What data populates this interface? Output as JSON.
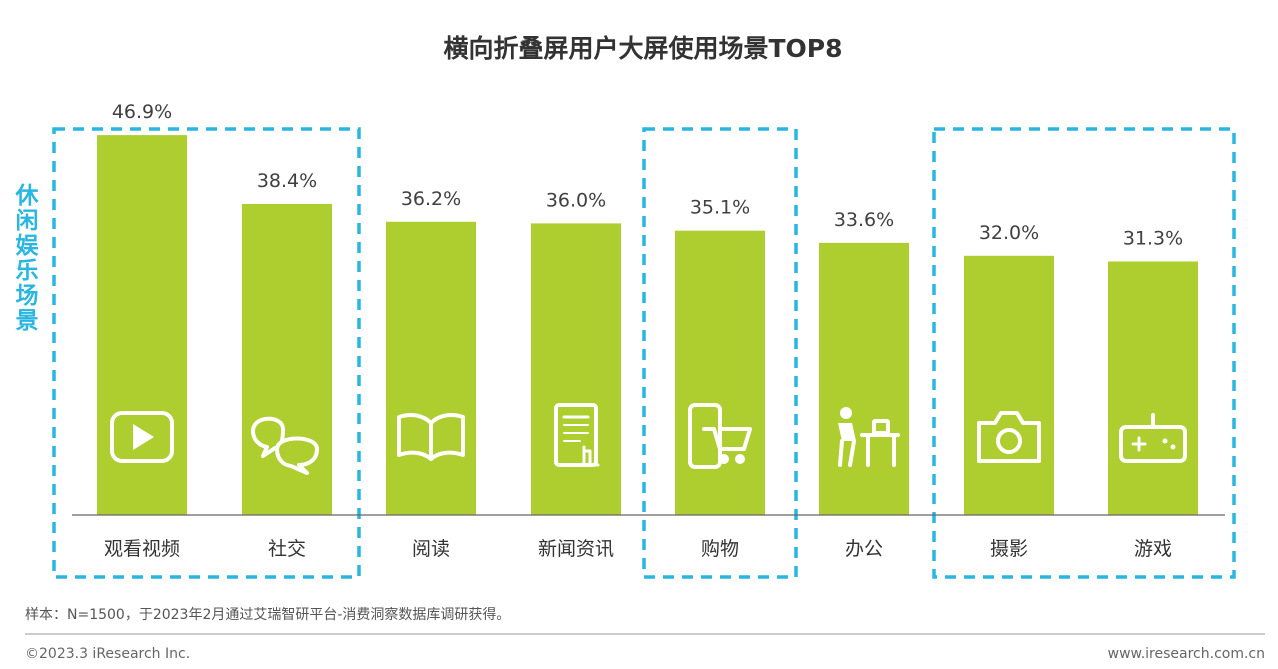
{
  "colors": {
    "bar": "#aecd2f",
    "highlight_box": "#29b6e0",
    "side_label": "#29b6e0",
    "icon": "#ffffff",
    "axis": "#666666"
  },
  "chart_data": {
    "type": "bar",
    "title": "横向折叠屏用户大屏使用场景TOP8",
    "categories": [
      "观看视频",
      "社交",
      "阅读",
      "新闻资讯",
      "购物",
      "办公",
      "摄影",
      "游戏"
    ],
    "values": [
      46.9,
      38.4,
      36.2,
      36.0,
      35.1,
      33.6,
      32.0,
      31.3
    ],
    "value_labels": [
      "46.9%",
      "38.4%",
      "36.2%",
      "36.0%",
      "35.1%",
      "33.6%",
      "32.0%",
      "31.3%"
    ],
    "icons": [
      "video-play-icon",
      "chat-bubbles-icon",
      "open-book-icon",
      "news-tablet-icon",
      "phone-cart-icon",
      "person-desk-icon",
      "camera-icon",
      "gamepad-icon"
    ],
    "ylim": [
      0,
      50
    ],
    "grid": false,
    "side_label": "休闲娱乐场景",
    "highlight_groups": [
      [
        "观看视频",
        "社交"
      ],
      [
        "购物"
      ],
      [
        "摄影",
        "游戏"
      ]
    ]
  },
  "note": "样本：N=1500，于2023年2月通过艾瑞智研平台-消费洞察数据库调研获得。",
  "footer": {
    "copyright": "©2023.3 iResearch Inc.",
    "website": "www.iresearch.com.cn"
  }
}
